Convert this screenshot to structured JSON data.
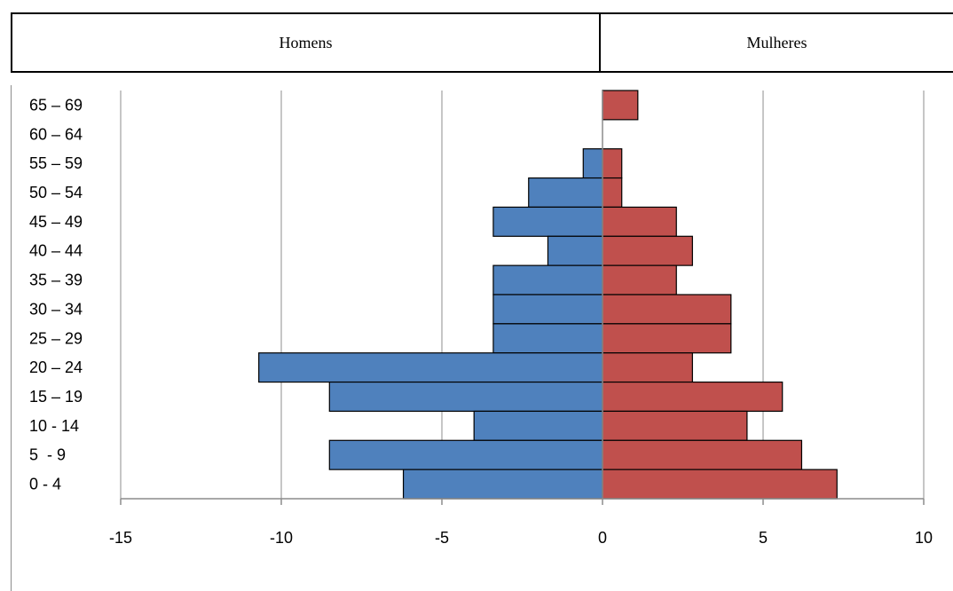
{
  "header": {
    "left_label": "Homens",
    "right_label": "Mulheres"
  },
  "chart_data": {
    "type": "bar",
    "orientation": "horizontal",
    "categories": [
      "65 – 69",
      "60 – 64",
      "55 – 59",
      "50 – 54",
      "45 – 49",
      "40 – 44",
      "35 – 39",
      "30 – 34",
      "25 – 29",
      "20 – 24",
      "15 – 19",
      "10 - 14",
      "5  - 9",
      "0 - 4"
    ],
    "series": [
      {
        "color": "#4f81bd",
        "values": [
          0,
          0,
          -0.6,
          -2.3,
          -3.4,
          -1.7,
          -3.4,
          -3.4,
          -3.4,
          -10.7,
          -8.5,
          -4.0,
          -8.5,
          -6.2
        ]
      },
      {
        "color": "#c0504d",
        "values": [
          1.1,
          0,
          0.6,
          0.6,
          2.3,
          2.8,
          2.3,
          4.0,
          4.0,
          2.8,
          5.6,
          4.5,
          6.2,
          7.3
        ]
      }
    ],
    "xlim": [
      -15,
      10
    ],
    "xticks": [
      -15,
      -10,
      -5,
      0,
      5,
      10
    ],
    "xtick_labels": [
      "-15",
      "-10",
      "-5",
      "0",
      "5",
      "10"
    ],
    "grid": true,
    "xlabel": "",
    "ylabel": ""
  }
}
